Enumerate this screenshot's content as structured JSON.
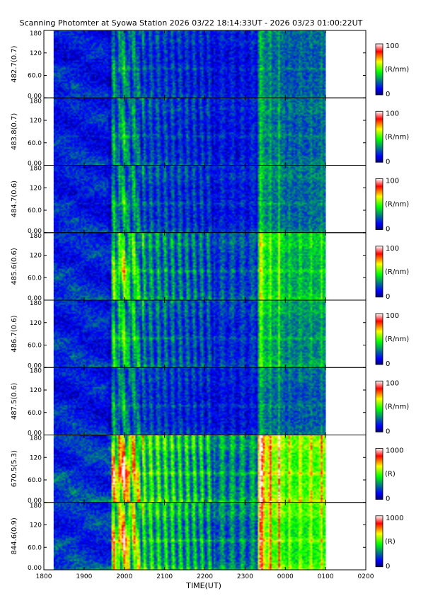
{
  "chart_data": {
    "type": "heatmap",
    "title": "Scanning Photomter at Syowa Station  2026 03/22 18:14:33UT - 2026 03/23 01:00:22UT",
    "xlabel": "TIME(UT)",
    "x_range_hours": [
      18,
      26
    ],
    "x_ticks": [
      {
        "v": 18,
        "label": "1800"
      },
      {
        "v": 19,
        "label": "1900"
      },
      {
        "v": 20,
        "label": "2000"
      },
      {
        "v": 21,
        "label": "2100"
      },
      {
        "v": 22,
        "label": "2200"
      },
      {
        "v": 23,
        "label": "2300"
      },
      {
        "v": 24,
        "label": "0000"
      },
      {
        "v": 25,
        "label": "0100"
      },
      {
        "v": 26,
        "label": "0200"
      }
    ],
    "data_start_hours": 18.2425,
    "data_end_hours": 25.006,
    "y_range_deg": [
      0,
      180
    ],
    "y_ticks": [
      {
        "v": 0,
        "label": "0.00"
      },
      {
        "v": 60,
        "label": "60.0"
      },
      {
        "v": 120,
        "label": "120"
      },
      {
        "v": 180,
        "label": "180"
      }
    ],
    "colormap": [
      "#000070",
      "#0000ff",
      "#00ff00",
      "#ffff00",
      "#ff0000",
      "#ffffff"
    ],
    "panels": [
      {
        "channel": "482.7(0.7)",
        "cmin": "0",
        "cmax": "100",
        "unit": "(R/nm)",
        "intensity": 0.6
      },
      {
        "channel": "483.8(0.7)",
        "cmin": "0",
        "cmax": "100",
        "unit": "(R/nm)",
        "intensity": 0.62
      },
      {
        "channel": "484.7(0.6)",
        "cmin": "0",
        "cmax": "100",
        "unit": "(R/nm)",
        "intensity": 0.64
      },
      {
        "channel": "485.6(0.6)",
        "cmin": "0",
        "cmax": "100",
        "unit": "(R/nm)",
        "intensity": 0.82
      },
      {
        "channel": "486.7(0.6)",
        "cmin": "0",
        "cmax": "100",
        "unit": "(R/nm)",
        "intensity": 0.72
      },
      {
        "channel": "487.5(0.6)",
        "cmin": "0",
        "cmax": "100",
        "unit": "(R/nm)",
        "intensity": 0.6
      },
      {
        "channel": "670.5(5.3)",
        "cmin": "0",
        "cmax": "1000",
        "unit": "(R)",
        "intensity": 1.05
      },
      {
        "channel": "844.6(0.9)",
        "cmin": "0",
        "cmax": "1000",
        "unit": "(R)",
        "intensity": 0.98
      }
    ]
  }
}
